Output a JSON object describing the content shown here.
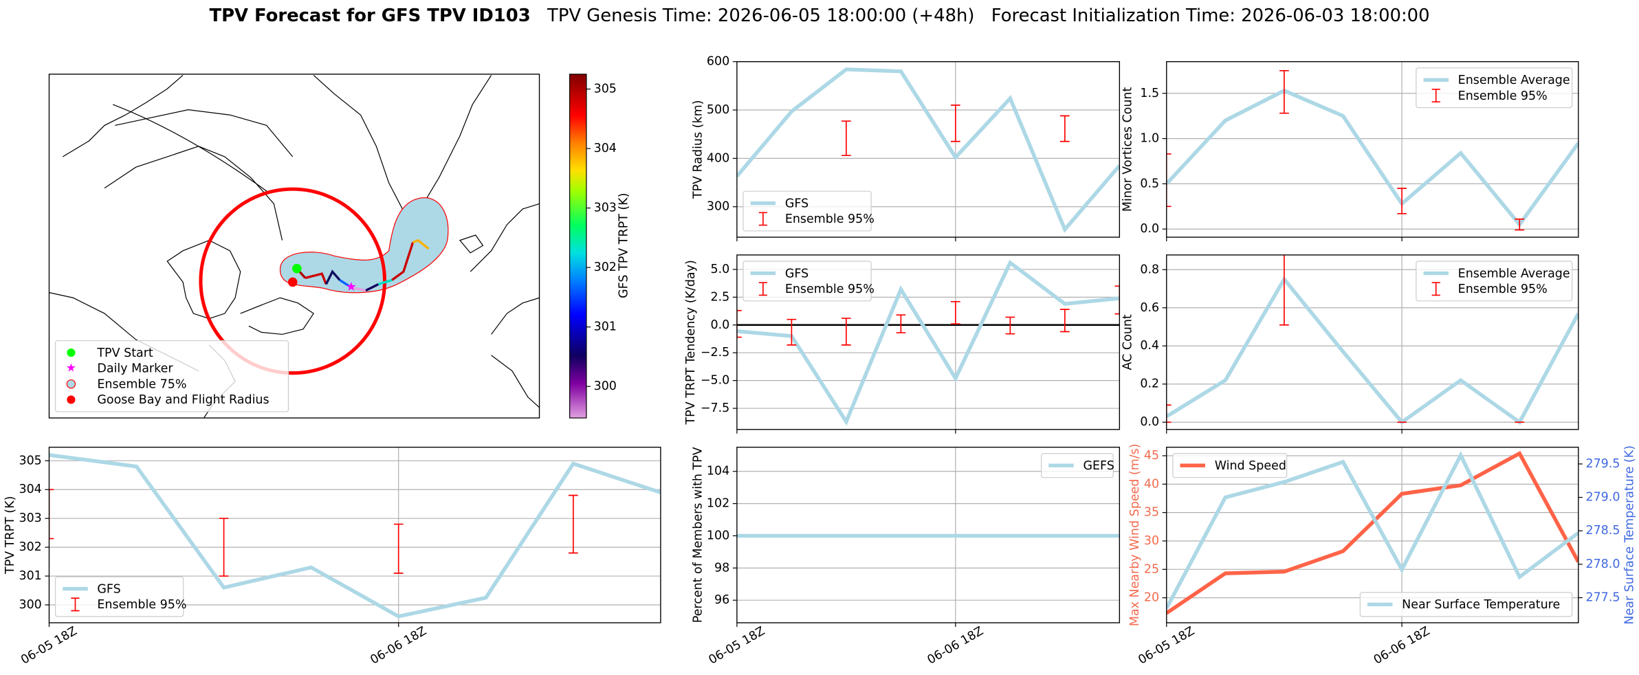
{
  "title": {
    "main": "TPV Forecast for GFS TPV ID103",
    "genesis": "TPV Genesis Time: 2026-06-05 18:00:00 (+48h)",
    "initialization": "Forecast Initialization Time: 2026-06-03 18:00:00"
  },
  "chart_data": [
    {
      "type": "map",
      "colorbar_label": "GFS TPV TRPT (K)",
      "clim": [
        299.47,
        305.25
      ],
      "cticks": [
        300,
        301,
        302,
        303,
        304,
        305
      ],
      "legend_loc": "lower left",
      "legend": [
        {
          "name": "TPV Start",
          "color": "#00ff00",
          "marker": "circle"
        },
        {
          "name": "Daily Marker",
          "color": "#ff00ff",
          "marker": "star"
        },
        {
          "name": "Ensemble 75%",
          "color": "#add8e6",
          "marker": "patch"
        },
        {
          "name": "Goose Bay and Flight Radius",
          "color": "#ff0000",
          "marker": "circle"
        }
      ]
    },
    {
      "type": "line",
      "ylabel": "TPV Radius (km)",
      "x": [
        0,
        6,
        12,
        18,
        24,
        30,
        36,
        42
      ],
      "xlim": [
        0,
        42
      ],
      "xticks": [
        {
          "value": 0,
          "label": "06-05 18Z"
        },
        {
          "value": 24,
          "label": "06-06 18Z"
        }
      ],
      "xtick_labels": false,
      "ylim": [
        237,
        600
      ],
      "yticks": [
        300,
        400,
        500,
        600
      ],
      "grid": true,
      "legend_loc": "lower left",
      "series": [
        {
          "name": "GFS",
          "color": "#add8e6",
          "values": [
            363,
            497,
            584,
            580,
            402,
            524,
            253,
            385
          ]
        }
      ],
      "ensemble": {
        "name": "Ensemble 95%",
        "color": "#ff0000",
        "low": [
          null,
          null,
          406,
          null,
          435,
          null,
          435,
          null
        ],
        "high": [
          null,
          null,
          477,
          null,
          510,
          null,
          488,
          null
        ]
      }
    },
    {
      "type": "line",
      "ylabel": "Minor Vortices Count",
      "x": [
        0,
        6,
        12,
        18,
        24,
        30,
        36,
        42
      ],
      "xlim": [
        0,
        42
      ],
      "xticks": [
        {
          "value": 0,
          "label": "06-05 18Z"
        },
        {
          "value": 24,
          "label": "06-06 18Z"
        }
      ],
      "xtick_labels": false,
      "ylim": [
        -0.09,
        1.85
      ],
      "yticks": [
        {
          "value": 0,
          "label": "0.0"
        },
        0.5,
        {
          "value": 1,
          "label": "1.0"
        },
        1.5
      ],
      "grid": true,
      "legend_loc": "upper right",
      "series": [
        {
          "name": "Ensemble Average",
          "color": "#add8e6",
          "values": [
            0.5,
            1.2,
            1.53,
            1.25,
            0.28,
            0.84,
            0.05,
            0.95
          ]
        }
      ],
      "ensemble": {
        "name": "Ensemble 95%",
        "color": "#ff0000",
        "low": [
          0.25,
          null,
          1.28,
          null,
          0.17,
          null,
          -0.01,
          null
        ],
        "high": [
          0.83,
          null,
          1.75,
          null,
          0.45,
          null,
          0.11,
          null
        ]
      }
    },
    {
      "type": "line",
      "ylabel": "TPV TRPT Tendency (K/day)",
      "x": [
        0,
        6,
        12,
        18,
        24,
        30,
        36,
        42
      ],
      "xlim": [
        0,
        42
      ],
      "xticks": [
        {
          "value": 0,
          "label": "06-05 18Z"
        },
        {
          "value": 24,
          "label": "06-06 18Z"
        }
      ],
      "xtick_labels": false,
      "ylim": [
        -9.4,
        6.3
      ],
      "yticks": [
        {
          "value": -7.5,
          "label": "−7.5"
        },
        {
          "value": -5,
          "label": "−5.0"
        },
        {
          "value": -2.5,
          "label": "−2.5"
        },
        {
          "value": 0,
          "label": "0.0"
        },
        2.5,
        {
          "value": 5,
          "label": "5.0"
        }
      ],
      "grid": true,
      "hline": 0,
      "legend_loc": "upper left",
      "series": [
        {
          "name": "GFS",
          "color": "#add8e6",
          "values": [
            -0.56,
            -1.0,
            -8.7,
            3.2,
            -4.8,
            5.6,
            1.9,
            2.4
          ]
        }
      ],
      "ensemble": {
        "name": "Ensemble 95%",
        "color": "#ff0000",
        "low": [
          -1.1,
          -1.8,
          -1.8,
          -0.7,
          0.1,
          -0.8,
          -0.6,
          1.0
        ],
        "high": [
          1.3,
          0.5,
          0.6,
          0.9,
          2.1,
          0.7,
          1.4,
          3.5
        ]
      }
    },
    {
      "type": "line",
      "ylabel": "AC Count",
      "x": [
        0,
        6,
        12,
        18,
        24,
        30,
        36,
        42
      ],
      "xlim": [
        0,
        42
      ],
      "xticks": [
        {
          "value": 0,
          "label": "06-05 18Z"
        },
        {
          "value": 24,
          "label": "06-06 18Z"
        }
      ],
      "xtick_labels": false,
      "ylim": [
        -0.038,
        0.877
      ],
      "yticks": [
        {
          "value": 0,
          "label": "0.0"
        },
        0.2,
        0.4,
        0.6,
        0.8
      ],
      "grid": true,
      "legend_loc": "upper right",
      "series": [
        {
          "name": "Ensemble Average",
          "color": "#add8e6",
          "values": [
            0.03,
            0.22,
            0.75,
            0.37,
            0.0,
            0.22,
            0.0,
            0.57
          ]
        }
      ],
      "ensemble": {
        "name": "Ensemble 95%",
        "color": "#ff0000",
        "low": [
          0.0,
          null,
          0.51,
          null,
          0.0,
          null,
          0.0,
          null
        ],
        "high": [
          0.09,
          null,
          0.93,
          null,
          0.0,
          null,
          0.0,
          null
        ]
      }
    },
    {
      "type": "line",
      "ylabel": "TPV TRPT (K)",
      "x": [
        0,
        6,
        12,
        18,
        24,
        30,
        36,
        42
      ],
      "xlim": [
        0,
        42
      ],
      "xticks": [
        {
          "value": 0,
          "label": "06-05 18Z"
        },
        {
          "value": 24,
          "label": "06-06 18Z"
        }
      ],
      "xtick_labels": true,
      "ylim": [
        299.38,
        305.47
      ],
      "yticks": [
        300,
        301,
        302,
        303,
        304,
        305
      ],
      "grid": true,
      "legend_loc": "lower left",
      "series": [
        {
          "name": "GFS",
          "color": "#add8e6",
          "values": [
            305.2,
            304.8,
            300.6,
            301.3,
            299.6,
            300.25,
            304.9,
            303.9
          ]
        }
      ],
      "ensemble": {
        "name": "Ensemble 95%",
        "color": "#ff0000",
        "low": [
          302.3,
          null,
          301.0,
          null,
          301.1,
          null,
          301.8,
          null
        ],
        "high": [
          304.0,
          null,
          303.0,
          null,
          302.8,
          null,
          303.8,
          null
        ]
      }
    },
    {
      "type": "line",
      "ylabel": "Percent of Members with TPV",
      "x": [
        0,
        6,
        12,
        18,
        24,
        30,
        36,
        42
      ],
      "xlim": [
        0,
        42
      ],
      "xticks": [
        {
          "value": 0,
          "label": "06-05 18Z"
        },
        {
          "value": 24,
          "label": "06-06 18Z"
        }
      ],
      "xtick_labels": true,
      "ylim": [
        94.6,
        105.5
      ],
      "yticks": [
        96,
        98,
        100,
        102,
        104
      ],
      "grid": true,
      "legend_loc": "upper right",
      "series": [
        {
          "name": "GEFS",
          "color": "#add8e6",
          "values": [
            100,
            100,
            100,
            100,
            100,
            100,
            100,
            100
          ]
        }
      ]
    },
    {
      "type": "line",
      "ylabel": "Max Nearby Wind Speed (m/s)",
      "ylabel_color": "#f26b4f",
      "y2label": "Near Surface Temperature (K)",
      "y2label_color": "#4169e1",
      "x": [
        0,
        6,
        12,
        18,
        24,
        30,
        36,
        42
      ],
      "xlim": [
        0,
        42
      ],
      "xticks": [
        {
          "value": 0,
          "label": "06-05 18Z"
        },
        {
          "value": 24,
          "label": "06-06 18Z"
        }
      ],
      "xtick_labels": true,
      "ylim": [
        15.6,
        46.5
      ],
      "yticks": [
        20,
        25,
        30,
        35,
        40,
        45
      ],
      "y2lim": [
        277.125,
        279.75
      ],
      "y2ticks": [
        277.5,
        {
          "value": 278,
          "label": "278.0"
        },
        278.5,
        {
          "value": 279,
          "label": "279.0"
        },
        279.5
      ],
      "grid": true,
      "series": [
        {
          "name": "Wind Speed",
          "color": "#ff6347",
          "legend_loc": "upper left",
          "values": [
            17.3,
            24.3,
            24.6,
            28.2,
            38.3,
            39.8,
            45.4,
            26.3
          ]
        },
        {
          "name": "Near Surface Temperature",
          "color": "#add8e6",
          "axis": "y2",
          "legend_loc": "lower right",
          "values": [
            277.34,
            279.0,
            279.23,
            279.53,
            277.92,
            279.63,
            277.81,
            278.47
          ]
        }
      ]
    }
  ]
}
